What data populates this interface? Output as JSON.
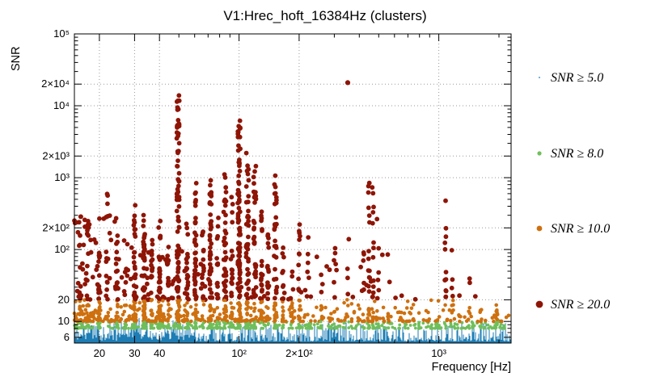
{
  "chart_data": {
    "type": "scatter",
    "title": "V1:Hrec_hoft_16384Hz (clusters)",
    "xlabel": "Frequency [Hz]",
    "ylabel": "SNR",
    "xscale": "log",
    "yscale": "log",
    "xlim": [
      15,
      2300
    ],
    "ylim": [
      5,
      100000
    ],
    "grid": true,
    "grid_color": "#9a9a9a",
    "legend_position": "right",
    "x_ticks": [
      {
        "v": 20,
        "label": "20",
        "grid": true
      },
      {
        "v": 30,
        "label": "30",
        "grid": true
      },
      {
        "v": 40,
        "label": "40",
        "grid": true
      },
      {
        "v": 100,
        "label": "10²",
        "grid": true
      },
      {
        "v": 200,
        "label": "2×10²",
        "grid": true
      },
      {
        "v": 1000,
        "label": "10³",
        "grid": true
      }
    ],
    "y_ticks": [
      {
        "v": 6,
        "label": "6",
        "grid": false
      },
      {
        "v": 10,
        "label": "10",
        "grid": true
      },
      {
        "v": 20,
        "label": "20",
        "grid": true
      },
      {
        "v": 100,
        "label": "10²",
        "grid": true
      },
      {
        "v": 200,
        "label": "2×10²",
        "grid": true
      },
      {
        "v": 1000,
        "label": "10³",
        "grid": true
      },
      {
        "v": 2000,
        "label": "2×10³",
        "grid": true
      },
      {
        "v": 10000,
        "label": "10⁴",
        "grid": true
      },
      {
        "v": 20000,
        "label": "2×10⁴",
        "grid": true
      },
      {
        "v": 100000,
        "label": "10⁵",
        "grid": false
      }
    ],
    "legend": [
      {
        "label": "SNR ≥ 5.0",
        "threshold": 5.0,
        "color": "#1e7db4",
        "marker_radius": 0.9,
        "point_radius": 1.1
      },
      {
        "label": "SNR ≥ 8.0",
        "threshold": 8.0,
        "color": "#6fbf5a",
        "marker_radius": 2.6,
        "point_radius": 1.9
      },
      {
        "label": "SNR ≥ 10.0",
        "threshold": 10.0,
        "color": "#ce700f",
        "marker_radius": 3.4,
        "point_radius": 2.3
      },
      {
        "label": "SNR ≥ 20.0",
        "threshold": 20.0,
        "color": "#8e1506",
        "marker_radius": 4.4,
        "point_radius": 2.9
      }
    ],
    "noise_floor": {
      "snr_min": 5,
      "snr_typ_max": 9,
      "span_hz": [
        15,
        2300
      ]
    },
    "background_bands": [
      {
        "name": "green-band",
        "smin": 8,
        "smax": 9.9,
        "n": 330
      },
      {
        "name": "orange-band",
        "smin": 10,
        "smax": 16,
        "n": 260
      },
      {
        "name": "orange-lowfreq",
        "fmin": 15,
        "fmax": 60,
        "smin": 10,
        "smax": 24,
        "n": 90
      }
    ],
    "clusters": [
      {
        "f": 16,
        "max": 300,
        "n": 22
      },
      {
        "f": 17.5,
        "max": 210,
        "n": 14
      },
      {
        "f": 20,
        "max": 95,
        "n": 30
      },
      {
        "f": 21.8,
        "max": 620,
        "n": 10
      },
      {
        "f": 24.5,
        "max": 160,
        "n": 26
      },
      {
        "f": 27,
        "max": 55,
        "n": 12
      },
      {
        "f": 30,
        "max": 430,
        "n": 48
      },
      {
        "f": 33.5,
        "max": 310,
        "n": 52
      },
      {
        "f": 36.5,
        "max": 140,
        "n": 26
      },
      {
        "f": 40,
        "max": 260,
        "n": 48
      },
      {
        "f": 44,
        "max": 110,
        "n": 18
      },
      {
        "f": 49.5,
        "max": 14000,
        "n": 95
      },
      {
        "f": 55,
        "max": 240,
        "n": 26
      },
      {
        "f": 60.5,
        "max": 850,
        "n": 62
      },
      {
        "f": 66,
        "max": 190,
        "n": 22
      },
      {
        "f": 72,
        "max": 950,
        "n": 60
      },
      {
        "f": 78,
        "max": 290,
        "n": 26
      },
      {
        "f": 85,
        "max": 1150,
        "n": 58
      },
      {
        "f": 92,
        "max": 560,
        "n": 34
      },
      {
        "f": 100,
        "max": 6200,
        "n": 110
      },
      {
        "f": 110,
        "max": 2300,
        "n": 62
      },
      {
        "f": 120,
        "max": 1500,
        "n": 52
      },
      {
        "f": 130,
        "max": 340,
        "n": 28
      },
      {
        "f": 140,
        "max": 170,
        "n": 18
      },
      {
        "f": 152,
        "max": 1100,
        "n": 44
      },
      {
        "f": 166,
        "max": 110,
        "n": 18
      },
      {
        "f": 183,
        "max": 50,
        "n": 12
      },
      {
        "f": 200,
        "max": 230,
        "n": 24
      },
      {
        "f": 222,
        "max": 150,
        "n": 10
      },
      {
        "f": 258,
        "max": 45,
        "n": 10
      },
      {
        "f": 300,
        "max": 110,
        "n": 8
      },
      {
        "f": 352,
        "max": 140,
        "n": 7
      },
      {
        "f": 420,
        "max": 95,
        "n": 8
      },
      {
        "f": 447,
        "max": 850,
        "n": 26
      },
      {
        "f": 468,
        "max": 780,
        "n": 20
      },
      {
        "f": 495,
        "max": 280,
        "n": 10
      },
      {
        "f": 1080,
        "max": 480,
        "n": 16
      },
      {
        "f": 1170,
        "max": 100,
        "n": 8
      },
      {
        "f": 1420,
        "max": 40,
        "n": 6
      },
      {
        "f": 1950,
        "max": 17,
        "n": 10
      }
    ],
    "diffuse": [
      {
        "fmin": 15,
        "fmax": 28,
        "smin": 25,
        "smax": 320,
        "n": 55
      },
      {
        "fmin": 28,
        "fmax": 65,
        "smin": 20,
        "smax": 110,
        "n": 40
      },
      {
        "fmin": 65,
        "fmax": 230,
        "smin": 20,
        "smax": 60,
        "n": 26
      },
      {
        "fmin": 230,
        "fmax": 600,
        "smin": 12,
        "smax": 90,
        "n": 22
      },
      {
        "fmin": 600,
        "fmax": 2200,
        "smin": 9,
        "smax": 25,
        "n": 30
      }
    ],
    "singles": [
      [
        350,
        21000
      ]
    ]
  }
}
